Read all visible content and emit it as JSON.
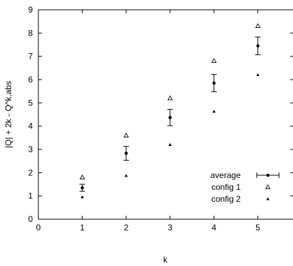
{
  "chart_data": {
    "type": "scatter",
    "title": "",
    "xlabel": "k",
    "ylabel": "|Q| + 2k - Q^k,abs",
    "xlim": [
      0,
      5.8
    ],
    "ylim": [
      0,
      9
    ],
    "xticks": [
      "0",
      "1",
      "2",
      "3",
      "4",
      "5"
    ],
    "yticks": [
      "0",
      "1",
      "2",
      "3",
      "4",
      "5",
      "6",
      "7",
      "8",
      "9"
    ],
    "grid": false,
    "legend_position": "bottom-right",
    "series": [
      {
        "name": "average",
        "marker": "point-errorbar",
        "color": "#000000",
        "x": [
          1,
          2,
          3,
          4,
          5
        ],
        "y": [
          1.35,
          2.83,
          4.37,
          5.85,
          7.45
        ],
        "yerr": [
          0.15,
          0.3,
          0.35,
          0.37,
          0.38
        ]
      },
      {
        "name": "config 1",
        "marker": "open-triangle",
        "color": "#000000",
        "x": [
          1,
          2,
          3,
          4,
          5
        ],
        "y": [
          1.8,
          3.6,
          5.2,
          6.8,
          8.3
        ]
      },
      {
        "name": "config 2",
        "marker": "filled-triangle",
        "color": "#000000",
        "x": [
          1,
          2,
          3,
          4,
          5
        ],
        "y": [
          0.95,
          1.87,
          3.2,
          4.63,
          6.2
        ]
      }
    ]
  }
}
